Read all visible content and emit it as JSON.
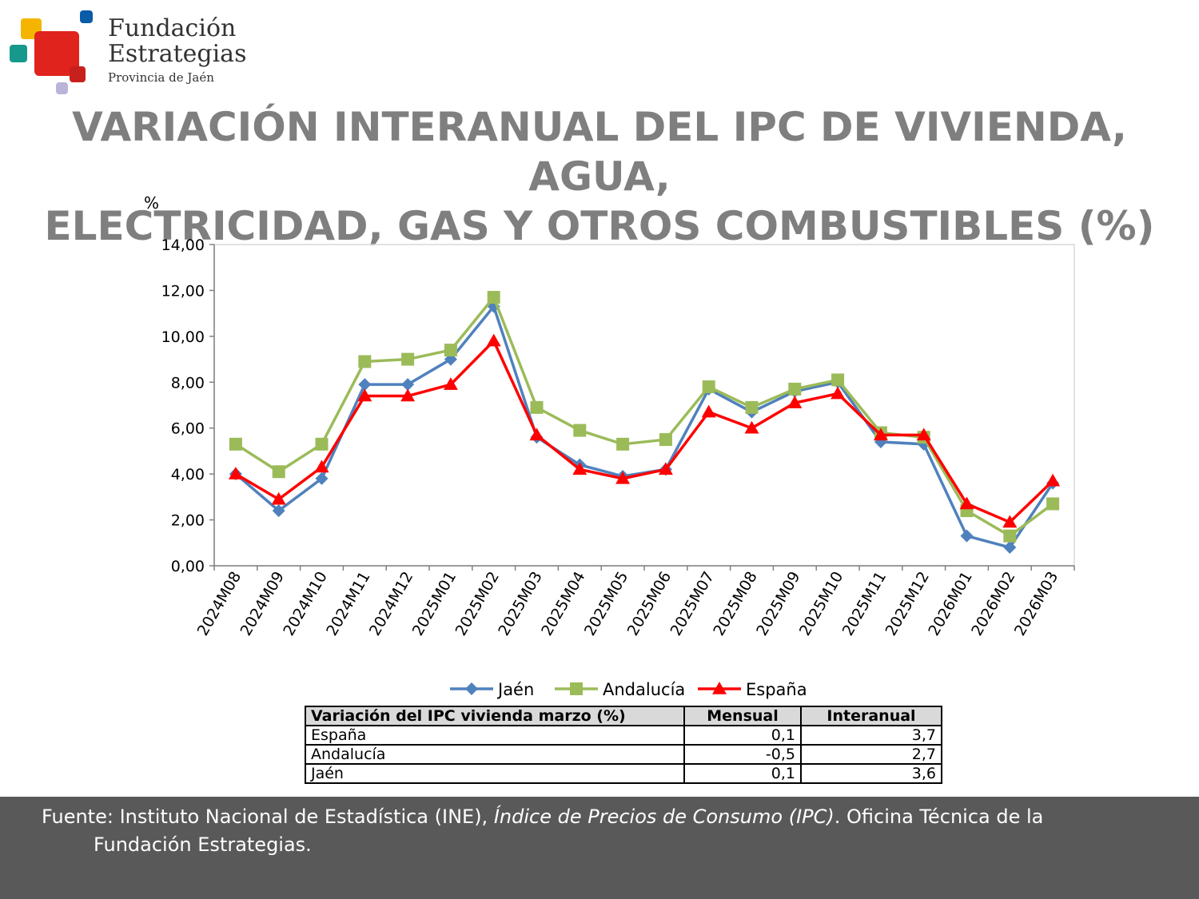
{
  "logo": {
    "line1": "Fundación",
    "line2": "Estrategias",
    "line3": "Provincia de Jaén",
    "colors": {
      "yellow": "#f5b400",
      "blue": "#0a5ba8",
      "teal": "#16998c",
      "red": "#e0231d",
      "red_dark": "#c8201c",
      "lilac": "#b9b4d8"
    }
  },
  "title": {
    "line1": "VARIACIÓN INTERANUAL DEL IPC DE VIVIENDA, AGUA,",
    "line2": "ELECTRICIDAD, GAS Y OTROS COMBUSTIBLES (%)"
  },
  "chart_data": {
    "type": "line",
    "ylabel": "%",
    "ylim": [
      0,
      14
    ],
    "yticks": [
      "0,00",
      "2,00",
      "4,00",
      "6,00",
      "8,00",
      "10,00",
      "12,00",
      "14,00"
    ],
    "categories": [
      "2024M08",
      "2024M09",
      "2024M10",
      "2024M11",
      "2024M12",
      "2025M01",
      "2025M02",
      "2025M03",
      "2025M04",
      "2025M05",
      "2025M06",
      "2025M07",
      "2025M08",
      "2025M09",
      "2025M10",
      "2025M11",
      "2025M12",
      "2026M01",
      "2026M02",
      "2026M03"
    ],
    "legend_position": "bottom",
    "grid": false,
    "series": [
      {
        "name": "Jaén",
        "color": "#4f81bd",
        "marker": "diamond",
        "values": [
          4.0,
          2.4,
          3.8,
          7.9,
          7.9,
          9.0,
          11.3,
          5.6,
          4.4,
          3.9,
          4.2,
          7.7,
          6.7,
          7.6,
          8.0,
          5.4,
          5.3,
          1.3,
          0.8,
          3.6
        ]
      },
      {
        "name": "Andalucía",
        "color": "#9bbb59",
        "marker": "square",
        "values": [
          5.3,
          4.1,
          5.3,
          8.9,
          9.0,
          9.4,
          11.7,
          6.9,
          5.9,
          5.3,
          5.5,
          7.8,
          6.9,
          7.7,
          8.1,
          5.8,
          5.6,
          2.4,
          1.3,
          2.7
        ]
      },
      {
        "name": "España",
        "color": "#ff0000",
        "marker": "triangle",
        "values": [
          4.0,
          2.9,
          4.3,
          7.4,
          7.4,
          7.9,
          9.8,
          5.7,
          4.2,
          3.8,
          4.2,
          6.7,
          6.0,
          7.1,
          7.5,
          5.7,
          5.7,
          2.7,
          1.9,
          3.7
        ]
      }
    ]
  },
  "table": {
    "headers": [
      "Variación del IPC vivienda marzo (%)",
      "Mensual",
      "Interanual"
    ],
    "rows": [
      [
        "España",
        "0,1",
        "3,7"
      ],
      [
        "Andalucía",
        "-0,5",
        "2,7"
      ],
      [
        "Jaén",
        "0,1",
        "3,6"
      ]
    ]
  },
  "footer": {
    "prefix": "Fuente: Instituto Nacional de Estadística (INE), ",
    "italic": "Índice de Precios de Consumo (IPC)",
    "suffix": ". Oficina Técnica de la",
    "line2": "Fundación Estrategias."
  }
}
